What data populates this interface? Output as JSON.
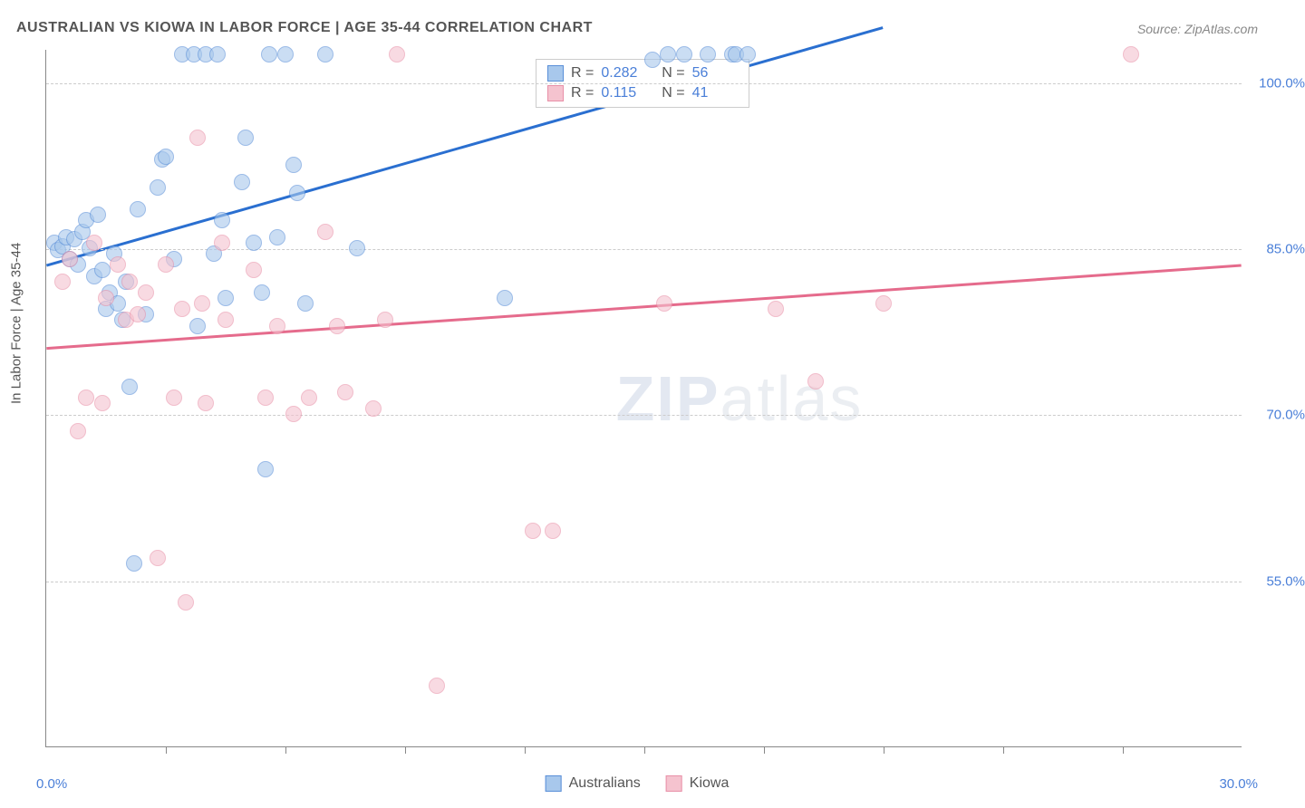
{
  "title": "AUSTRALIAN VS KIOWA IN LABOR FORCE | AGE 35-44 CORRELATION CHART",
  "source": "Source: ZipAtlas.com",
  "yaxis_title": "In Labor Force | Age 35-44",
  "watermark": {
    "zip": "ZIP",
    "atlas": "atlas"
  },
  "chart": {
    "type": "scatter",
    "plot_bg": "#ffffff",
    "grid_color": "#cccccc",
    "axis_color": "#888888",
    "tick_label_color": "#4a7fd8",
    "tick_fontsize": 15,
    "title_fontsize": 16,
    "title_color": "#555555",
    "xlim": [
      0,
      30
    ],
    "ylim": [
      40,
      103
    ],
    "yticks": [
      {
        "v": 55.0,
        "label": "55.0%"
      },
      {
        "v": 70.0,
        "label": "70.0%"
      },
      {
        "v": 85.0,
        "label": "85.0%"
      },
      {
        "v": 100.0,
        "label": "100.0%"
      }
    ],
    "xticks_major_step": 3,
    "xaxis_end_labels": {
      "left": "0.0%",
      "right": "30.0%"
    },
    "marker_radius": 9,
    "marker_opacity": 0.6,
    "series": [
      {
        "name": "Australians",
        "fill": "#a8c8ec",
        "stroke": "#5a8fd8",
        "line_color": "#2a6fd0",
        "line_width": 3,
        "r": "0.282",
        "n": "56",
        "trend": {
          "x1": 0,
          "y1": 83.5,
          "x2": 21,
          "y2": 105
        },
        "points": [
          [
            0.2,
            85.5
          ],
          [
            0.3,
            84.8
          ],
          [
            0.4,
            85.2
          ],
          [
            0.5,
            86.0
          ],
          [
            0.6,
            84.0
          ],
          [
            0.7,
            85.8
          ],
          [
            0.8,
            83.5
          ],
          [
            0.9,
            86.5
          ],
          [
            1.0,
            87.5
          ],
          [
            1.1,
            85.0
          ],
          [
            1.2,
            82.5
          ],
          [
            1.3,
            88.0
          ],
          [
            1.4,
            83.0
          ],
          [
            1.5,
            79.5
          ],
          [
            1.6,
            81.0
          ],
          [
            1.7,
            84.5
          ],
          [
            1.8,
            80.0
          ],
          [
            1.9,
            78.5
          ],
          [
            2.0,
            82.0
          ],
          [
            2.1,
            72.5
          ],
          [
            2.2,
            56.5
          ],
          [
            2.3,
            88.5
          ],
          [
            2.5,
            79.0
          ],
          [
            2.8,
            90.5
          ],
          [
            2.9,
            93.0
          ],
          [
            3.0,
            93.3
          ],
          [
            3.2,
            84.0
          ],
          [
            3.4,
            102.5
          ],
          [
            3.7,
            102.5
          ],
          [
            3.8,
            78.0
          ],
          [
            4.0,
            102.5
          ],
          [
            4.2,
            84.5
          ],
          [
            4.3,
            102.5
          ],
          [
            4.4,
            87.5
          ],
          [
            4.5,
            80.5
          ],
          [
            4.9,
            91.0
          ],
          [
            5.0,
            95.0
          ],
          [
            5.2,
            85.5
          ],
          [
            5.4,
            81.0
          ],
          [
            5.5,
            65.0
          ],
          [
            5.6,
            102.5
          ],
          [
            5.8,
            86.0
          ],
          [
            6.0,
            102.5
          ],
          [
            6.2,
            92.5
          ],
          [
            6.3,
            90.0
          ],
          [
            6.5,
            80.0
          ],
          [
            7.0,
            102.5
          ],
          [
            7.8,
            85.0
          ],
          [
            11.5,
            80.5
          ],
          [
            15.2,
            102.0
          ],
          [
            15.6,
            102.5
          ],
          [
            16.0,
            102.5
          ],
          [
            16.6,
            102.5
          ],
          [
            17.2,
            102.5
          ],
          [
            17.3,
            102.5
          ],
          [
            17.6,
            102.5
          ]
        ]
      },
      {
        "name": "Kiowa",
        "fill": "#f5c3cf",
        "stroke": "#e890a8",
        "line_color": "#e56b8c",
        "line_width": 3,
        "r": "0.115",
        "n": "41",
        "trend": {
          "x1": 0,
          "y1": 76.0,
          "x2": 30,
          "y2": 83.5
        },
        "points": [
          [
            0.4,
            82.0
          ],
          [
            0.6,
            84.0
          ],
          [
            0.8,
            68.5
          ],
          [
            1.0,
            71.5
          ],
          [
            1.2,
            85.5
          ],
          [
            1.4,
            71.0
          ],
          [
            1.5,
            80.5
          ],
          [
            1.8,
            83.5
          ],
          [
            2.0,
            78.5
          ],
          [
            2.1,
            82.0
          ],
          [
            2.3,
            79.0
          ],
          [
            2.5,
            81.0
          ],
          [
            2.8,
            57.0
          ],
          [
            3.0,
            83.5
          ],
          [
            3.2,
            71.5
          ],
          [
            3.4,
            79.5
          ],
          [
            3.5,
            53.0
          ],
          [
            3.8,
            95.0
          ],
          [
            3.9,
            80.0
          ],
          [
            4.0,
            71.0
          ],
          [
            4.4,
            85.5
          ],
          [
            4.5,
            78.5
          ],
          [
            5.2,
            83.0
          ],
          [
            5.5,
            71.5
          ],
          [
            5.8,
            78.0
          ],
          [
            6.2,
            70.0
          ],
          [
            6.6,
            71.5
          ],
          [
            7.0,
            86.5
          ],
          [
            7.3,
            78.0
          ],
          [
            7.5,
            72.0
          ],
          [
            8.2,
            70.5
          ],
          [
            8.5,
            78.5
          ],
          [
            8.8,
            102.5
          ],
          [
            9.8,
            45.5
          ],
          [
            12.2,
            59.5
          ],
          [
            12.7,
            59.5
          ],
          [
            15.5,
            80.0
          ],
          [
            18.3,
            79.5
          ],
          [
            19.3,
            73.0
          ],
          [
            21.0,
            80.0
          ],
          [
            27.2,
            102.5
          ]
        ]
      }
    ]
  },
  "legend": {
    "items": [
      {
        "label": "Australians",
        "fill": "#a8c8ec",
        "stroke": "#5a8fd8"
      },
      {
        "label": "Kiowa",
        "fill": "#f5c3cf",
        "stroke": "#e890a8"
      }
    ]
  }
}
